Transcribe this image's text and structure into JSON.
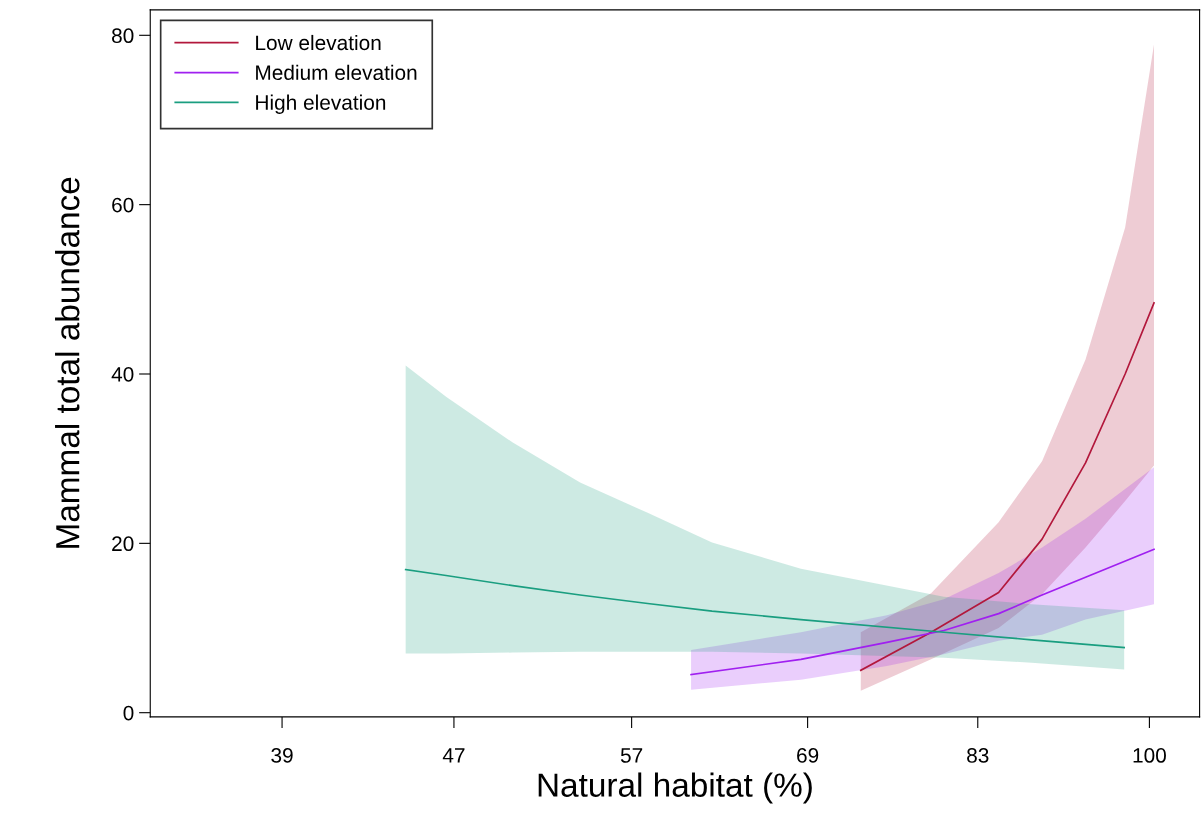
{
  "chart_data": {
    "type": "line",
    "xlabel": "Natural habitat (%)",
    "ylabel": "Mammal total abundance",
    "log": "x",
    "xlim": [
      33.8,
      105.6
    ],
    "xticks": [
      39,
      47,
      57,
      69,
      83,
      100
    ],
    "ylim": [
      -0.5,
      83
    ],
    "yticks": [
      0,
      20,
      40,
      60,
      80
    ],
    "grid": false,
    "legend": "top left",
    "marker": "none",
    "line_style": "solid",
    "series": [
      {
        "name": "Low elevation",
        "color": "#b2183c",
        "x": [
          73.1,
          78.9,
          84.9,
          89.0,
          93.3,
          97.4,
          100.5
        ],
        "values": [
          5.0,
          9.5,
          14.2,
          20.5,
          29.5,
          40.0,
          48.4
        ],
        "lower": [
          2.6,
          6.3,
          10.0,
          14.0,
          19.5,
          25.0,
          29.2
        ],
        "upper": [
          9.5,
          14.1,
          22.5,
          29.7,
          41.7,
          57.3,
          78.9
        ]
      },
      {
        "name": "Medium elevation",
        "color": "#a020f0",
        "x": [
          60.8,
          68.5,
          75.2,
          80.0,
          84.9,
          89.0,
          93.3,
          100.5
        ],
        "values": [
          4.5,
          6.3,
          8.3,
          9.7,
          11.7,
          13.9,
          16.0,
          19.3
        ],
        "lower": [
          2.7,
          3.9,
          5.5,
          6.9,
          8.5,
          9.2,
          11.0,
          12.8
        ],
        "upper": [
          7.4,
          9.5,
          11.5,
          13.4,
          16.5,
          19.5,
          22.9,
          29.0
        ]
      },
      {
        "name": "High elevation",
        "color": "#1a9e80",
        "x": [
          44.6,
          46.6,
          50.1,
          53.9,
          58.0,
          62.2,
          68.5,
          80.0,
          88.0,
          97.3
        ],
        "values": [
          16.9,
          16.2,
          15.0,
          13.9,
          12.9,
          12.0,
          11.0,
          9.5,
          8.6,
          7.7
        ],
        "lower": [
          7.0,
          7.0,
          7.1,
          7.2,
          7.2,
          7.2,
          7.0,
          6.5,
          5.9,
          5.1
        ],
        "upper": [
          41.0,
          37.3,
          31.9,
          27.2,
          23.6,
          20.1,
          17.0,
          13.7,
          12.8,
          12.1
        ]
      }
    ]
  }
}
